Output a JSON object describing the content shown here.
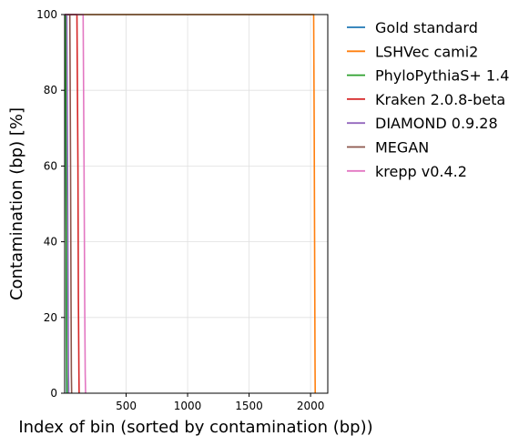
{
  "chart_data": {
    "type": "line",
    "xlabel": "Index of bin (sorted by contamination (bp))",
    "ylabel": "Contamination (bp) [%]",
    "xlim": [
      0,
      2140
    ],
    "ylim": [
      0,
      100
    ],
    "xticks": [
      500,
      1000,
      1500,
      2000
    ],
    "yticks": [
      0,
      20,
      40,
      60,
      80,
      100
    ],
    "grid": true,
    "legend_position": "outside-right",
    "series": [
      {
        "name": "Gold standard",
        "color": "#1f77b4",
        "x": [
          0,
          8,
          12,
          14,
          16,
          17
        ],
        "y": [
          100,
          100,
          60,
          30,
          5,
          0
        ]
      },
      {
        "name": "LSHVec cami2",
        "color": "#ff7f0e",
        "x": [
          0,
          2025,
          2030,
          2033,
          2036,
          2038
        ],
        "y": [
          100,
          100,
          70,
          35,
          8,
          0
        ]
      },
      {
        "name": "PhyloPythiaS+ 1.4",
        "color": "#2ca02c",
        "x": [
          0,
          8,
          12,
          15,
          18,
          20
        ],
        "y": [
          100,
          100,
          60,
          25,
          5,
          0
        ]
      },
      {
        "name": "Kraken 2.0.8-beta",
        "color": "#d62728",
        "x": [
          0,
          100,
          108,
          112,
          116,
          118
        ],
        "y": [
          100,
          100,
          60,
          25,
          5,
          0
        ]
      },
      {
        "name": "DIAMOND 0.9.28",
        "color": "#9467bd",
        "x": [
          0,
          18,
          24,
          28,
          31,
          33
        ],
        "y": [
          100,
          100,
          60,
          25,
          5,
          0
        ]
      },
      {
        "name": "MEGAN",
        "color": "#8c564b",
        "x": [
          0,
          42,
          48,
          52,
          55,
          57
        ],
        "y": [
          100,
          100,
          60,
          25,
          5,
          0
        ]
      },
      {
        "name": "krepp v0.4.2",
        "color": "#e377c2",
        "x": [
          0,
          150,
          158,
          163,
          167,
          170
        ],
        "y": [
          100,
          100,
          60,
          25,
          5,
          0
        ]
      }
    ]
  }
}
